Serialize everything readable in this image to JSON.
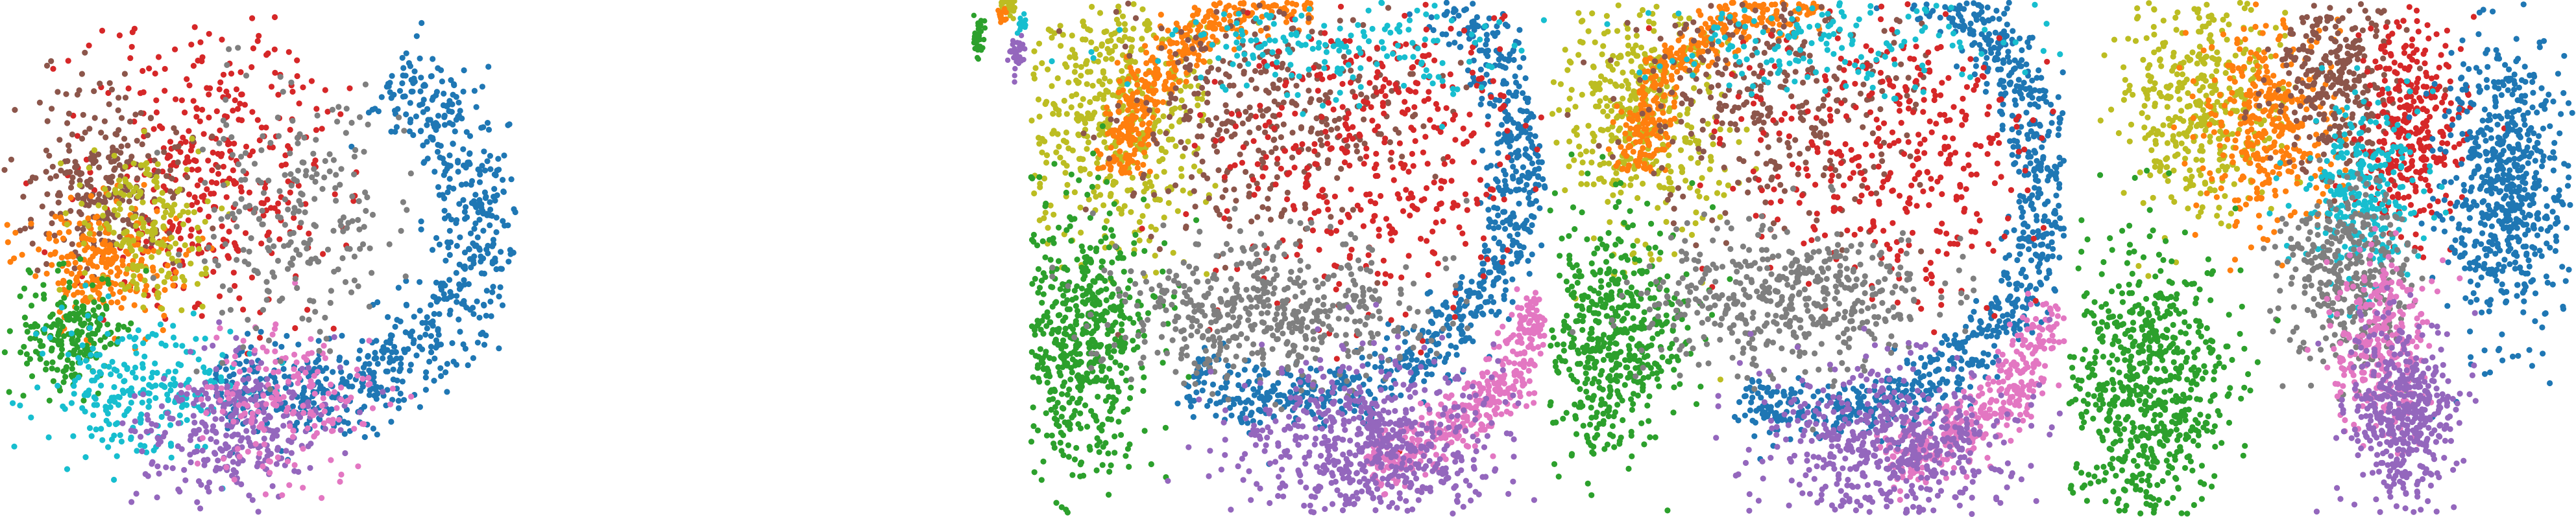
{
  "figure": {
    "title": ""
  },
  "palette": {
    "blue": "#1f77b4",
    "orange": "#ff7f0e",
    "green": "#2ca02c",
    "red": "#d62728",
    "purple": "#9467bd",
    "brown": "#8c564b",
    "pink": "#e377c2",
    "gray": "#7f7f7f",
    "olive": "#bcbd22",
    "cyan": "#17becf"
  },
  "chart_data": [
    {
      "type": "scatter",
      "title": "",
      "xlabel": "",
      "ylabel": "",
      "xlim": [
        0,
        1
      ],
      "ylim": [
        0,
        1
      ],
      "grid": false,
      "legend": "none",
      "axes": "hidden",
      "series": [
        {
          "color": "#1f77b4",
          "n": 720,
          "shape": "arc",
          "cx": 0.58,
          "cy": 0.42,
          "r": 0.34,
          "a0": -60,
          "a1": 120,
          "thick": 0.09
        },
        {
          "color": "#d62728",
          "n": 380,
          "shape": "blob",
          "cx": 0.4,
          "cy": 0.3,
          "sx": 0.12,
          "sy": 0.16
        },
        {
          "color": "#8c564b",
          "n": 260,
          "shape": "blob",
          "cx": 0.2,
          "cy": 0.33,
          "sx": 0.08,
          "sy": 0.08
        },
        {
          "color": "#ff7f0e",
          "n": 240,
          "shape": "blob",
          "cx": 0.2,
          "cy": 0.49,
          "sx": 0.07,
          "sy": 0.06
        },
        {
          "color": "#bcbd22",
          "n": 180,
          "shape": "blob",
          "cx": 0.27,
          "cy": 0.42,
          "sx": 0.06,
          "sy": 0.08
        },
        {
          "color": "#2ca02c",
          "n": 200,
          "shape": "blob",
          "cx": 0.14,
          "cy": 0.64,
          "sx": 0.05,
          "sy": 0.06
        },
        {
          "color": "#17becf",
          "n": 250,
          "shape": "blob",
          "cx": 0.27,
          "cy": 0.75,
          "sx": 0.1,
          "sy": 0.07
        },
        {
          "color": "#9467bd",
          "n": 320,
          "shape": "blob",
          "cx": 0.44,
          "cy": 0.82,
          "sx": 0.09,
          "sy": 0.07
        },
        {
          "color": "#e377c2",
          "n": 170,
          "shape": "blob",
          "cx": 0.56,
          "cy": 0.78,
          "sx": 0.09,
          "sy": 0.08
        },
        {
          "color": "#7f7f7f",
          "n": 240,
          "shape": "blob",
          "cx": 0.56,
          "cy": 0.4,
          "sx": 0.09,
          "sy": 0.14
        }
      ]
    },
    {
      "type": "scatter",
      "title": "",
      "xlabel": "",
      "ylabel": "",
      "xlim": [
        0,
        1
      ],
      "ylim": [
        0,
        1
      ],
      "grid": false,
      "legend": "none",
      "axes": "hidden",
      "series": [
        {
          "color": "#bcbd22",
          "n": 40,
          "shape": "blob",
          "cx": 0.78,
          "cy": 0.06,
          "sx": 0.05,
          "sy": 0.04
        },
        {
          "color": "#2ca02c",
          "n": 35,
          "shape": "blob",
          "cx": 0.42,
          "cy": 0.3,
          "sx": 0.04,
          "sy": 0.09
        },
        {
          "color": "#9467bd",
          "n": 35,
          "shape": "blob",
          "cx": 0.86,
          "cy": 0.48,
          "sx": 0.06,
          "sy": 0.08
        },
        {
          "color": "#17becf",
          "n": 15,
          "shape": "blob",
          "cx": 0.92,
          "cy": 0.2,
          "sx": 0.04,
          "sy": 0.05
        },
        {
          "color": "#ff7f0e",
          "n": 15,
          "shape": "blob",
          "cx": 0.7,
          "cy": 0.12,
          "sx": 0.04,
          "sy": 0.05
        }
      ]
    },
    {
      "type": "scatter",
      "title": "",
      "xlabel": "",
      "ylabel": "",
      "xlim": [
        0,
        1
      ],
      "ylim": [
        0,
        1
      ],
      "grid": false,
      "legend": "none",
      "axes": "hidden",
      "series": [
        {
          "color": "#1f77b4",
          "n": 950,
          "shape": "arc",
          "cx": 0.5,
          "cy": 0.32,
          "r": 0.45,
          "a0": -85,
          "a1": 115,
          "thick": 0.06
        },
        {
          "color": "#bcbd22",
          "n": 480,
          "shape": "blob",
          "cx": 0.17,
          "cy": 0.22,
          "sx": 0.09,
          "sy": 0.13
        },
        {
          "color": "#ff7f0e",
          "n": 420,
          "shape": "arc",
          "cx": 0.52,
          "cy": 0.34,
          "r": 0.34,
          "a0": 180,
          "a1": 275,
          "thick": 0.05
        },
        {
          "color": "#8c564b",
          "n": 380,
          "shape": "blob",
          "cx": 0.45,
          "cy": 0.22,
          "sx": 0.14,
          "sy": 0.12
        },
        {
          "color": "#d62728",
          "n": 420,
          "shape": "blob",
          "cx": 0.66,
          "cy": 0.3,
          "sx": 0.15,
          "sy": 0.16
        },
        {
          "color": "#2ca02c",
          "n": 600,
          "shape": "blob",
          "cx": 0.1,
          "cy": 0.65,
          "sx": 0.07,
          "sy": 0.13
        },
        {
          "color": "#7f7f7f",
          "n": 520,
          "shape": "blob",
          "cx": 0.46,
          "cy": 0.6,
          "sx": 0.15,
          "sy": 0.07
        },
        {
          "color": "#e377c2",
          "n": 420,
          "shape": "arc",
          "cx": 0.52,
          "cy": 0.4,
          "r": 0.52,
          "a0": 20,
          "a1": 75,
          "thick": 0.06
        },
        {
          "color": "#9467bd",
          "n": 620,
          "shape": "blob",
          "cx": 0.66,
          "cy": 0.86,
          "sx": 0.13,
          "sy": 0.08
        },
        {
          "color": "#17becf",
          "n": 180,
          "shape": "blob",
          "cx": 0.58,
          "cy": 0.08,
          "sx": 0.18,
          "sy": 0.05
        }
      ]
    },
    {
      "type": "scatter",
      "title": "",
      "xlabel": "",
      "ylabel": "",
      "xlim": [
        0,
        1
      ],
      "ylim": [
        0,
        1
      ],
      "grid": false,
      "legend": "none",
      "axes": "hidden",
      "series": [
        {
          "color": "#1f77b4",
          "n": 900,
          "shape": "arc",
          "cx": 0.52,
          "cy": 0.36,
          "r": 0.44,
          "a0": -80,
          "a1": 110,
          "thick": 0.06
        },
        {
          "color": "#bcbd22",
          "n": 420,
          "shape": "blob",
          "cx": 0.18,
          "cy": 0.22,
          "sx": 0.08,
          "sy": 0.12
        },
        {
          "color": "#ff7f0e",
          "n": 380,
          "shape": "arc",
          "cx": 0.5,
          "cy": 0.34,
          "r": 0.33,
          "a0": 180,
          "a1": 275,
          "thick": 0.05
        },
        {
          "color": "#8c564b",
          "n": 340,
          "shape": "blob",
          "cx": 0.45,
          "cy": 0.2,
          "sx": 0.14,
          "sy": 0.12
        },
        {
          "color": "#d62728",
          "n": 380,
          "shape": "blob",
          "cx": 0.66,
          "cy": 0.28,
          "sx": 0.14,
          "sy": 0.15
        },
        {
          "color": "#2ca02c",
          "n": 520,
          "shape": "blob",
          "cx": 0.12,
          "cy": 0.66,
          "sx": 0.07,
          "sy": 0.12
        },
        {
          "color": "#7f7f7f",
          "n": 480,
          "shape": "blob",
          "cx": 0.46,
          "cy": 0.58,
          "sx": 0.14,
          "sy": 0.07
        },
        {
          "color": "#e377c2",
          "n": 380,
          "shape": "arc",
          "cx": 0.52,
          "cy": 0.42,
          "r": 0.5,
          "a0": 20,
          "a1": 75,
          "thick": 0.06
        },
        {
          "color": "#9467bd",
          "n": 560,
          "shape": "blob",
          "cx": 0.66,
          "cy": 0.86,
          "sx": 0.12,
          "sy": 0.08
        },
        {
          "color": "#17becf",
          "n": 170,
          "shape": "blob",
          "cx": 0.55,
          "cy": 0.08,
          "sx": 0.17,
          "sy": 0.05
        }
      ]
    },
    {
      "type": "scatter",
      "title": "",
      "xlabel": "",
      "ylabel": "",
      "xlim": [
        0,
        1
      ],
      "ylim": [
        0,
        1
      ],
      "grid": false,
      "legend": "none",
      "axes": "hidden",
      "series": [
        {
          "color": "#bcbd22",
          "n": 420,
          "shape": "blob",
          "cx": 0.26,
          "cy": 0.2,
          "sx": 0.08,
          "sy": 0.11
        },
        {
          "color": "#ff7f0e",
          "n": 360,
          "shape": "blob",
          "cx": 0.4,
          "cy": 0.24,
          "sx": 0.07,
          "sy": 0.1
        },
        {
          "color": "#8c564b",
          "n": 340,
          "shape": "blob",
          "cx": 0.53,
          "cy": 0.14,
          "sx": 0.06,
          "sy": 0.1
        },
        {
          "color": "#d62728",
          "n": 320,
          "shape": "blob",
          "cx": 0.68,
          "cy": 0.24,
          "sx": 0.05,
          "sy": 0.1
        },
        {
          "color": "#1f77b4",
          "n": 620,
          "shape": "blob",
          "cx": 0.86,
          "cy": 0.36,
          "sx": 0.06,
          "sy": 0.14
        },
        {
          "color": "#17becf",
          "n": 280,
          "shape": "blob",
          "cx": 0.58,
          "cy": 0.38,
          "sx": 0.06,
          "sy": 0.09
        },
        {
          "color": "#7f7f7f",
          "n": 360,
          "shape": "blob",
          "cx": 0.55,
          "cy": 0.54,
          "sx": 0.06,
          "sy": 0.09
        },
        {
          "color": "#e377c2",
          "n": 280,
          "shape": "blob",
          "cx": 0.62,
          "cy": 0.66,
          "sx": 0.05,
          "sy": 0.09
        },
        {
          "color": "#9467bd",
          "n": 440,
          "shape": "blob",
          "cx": 0.66,
          "cy": 0.8,
          "sx": 0.05,
          "sy": 0.09
        },
        {
          "color": "#2ca02c",
          "n": 700,
          "shape": "blob",
          "cx": 0.15,
          "cy": 0.76,
          "sx": 0.08,
          "sy": 0.14
        }
      ]
    }
  ]
}
